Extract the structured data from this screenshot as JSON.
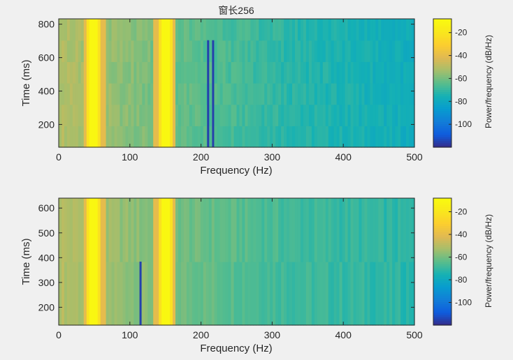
{
  "figure": {
    "background": "#f0f0f0",
    "colormap": "parula"
  },
  "chart_data": [
    {
      "type": "heatmap",
      "title": "窗长256",
      "xlabel": "Frequency (Hz)",
      "ylabel": "Time (ms)",
      "xlim": [
        0,
        500
      ],
      "ylim": [
        64,
        832
      ],
      "xticks": [
        0,
        100,
        200,
        300,
        400,
        500
      ],
      "yticks": [
        200,
        400,
        600,
        800
      ],
      "colorbar": {
        "label": "Power/frequency (dB/Hz)",
        "clim": [
          -120,
          -8
        ],
        "ticks": [
          -20,
          -40,
          -60,
          -80,
          -100
        ]
      },
      "time_bins": [
        64,
        192,
        320,
        448,
        576,
        704,
        832
      ],
      "tone_peaks_hz": [
        50,
        150
      ],
      "dip_hz": [
        210,
        217
      ],
      "base_level_db": [
        -50,
        -62,
        -72,
        -78
      ]
    },
    {
      "type": "heatmap",
      "title": "",
      "xlabel": "Frequency (Hz)",
      "ylabel": "Time (ms)",
      "xlim": [
        0,
        500
      ],
      "ylim": [
        128,
        640
      ],
      "xticks": [
        0,
        100,
        200,
        300,
        400,
        500
      ],
      "yticks": [
        200,
        300,
        400,
        500,
        600
      ],
      "colorbar": {
        "label": "Power/frequency (dB/Hz)",
        "clim": [
          -120,
          -8
        ],
        "ticks": [
          -20,
          -40,
          -60,
          -80,
          -100
        ]
      },
      "time_bins": [
        128,
        384,
        640
      ],
      "tone_peaks_hz": [
        50,
        150
      ],
      "dip_hz": [
        115
      ],
      "base_level_db": [
        -50,
        -60,
        -68,
        -72
      ]
    }
  ]
}
